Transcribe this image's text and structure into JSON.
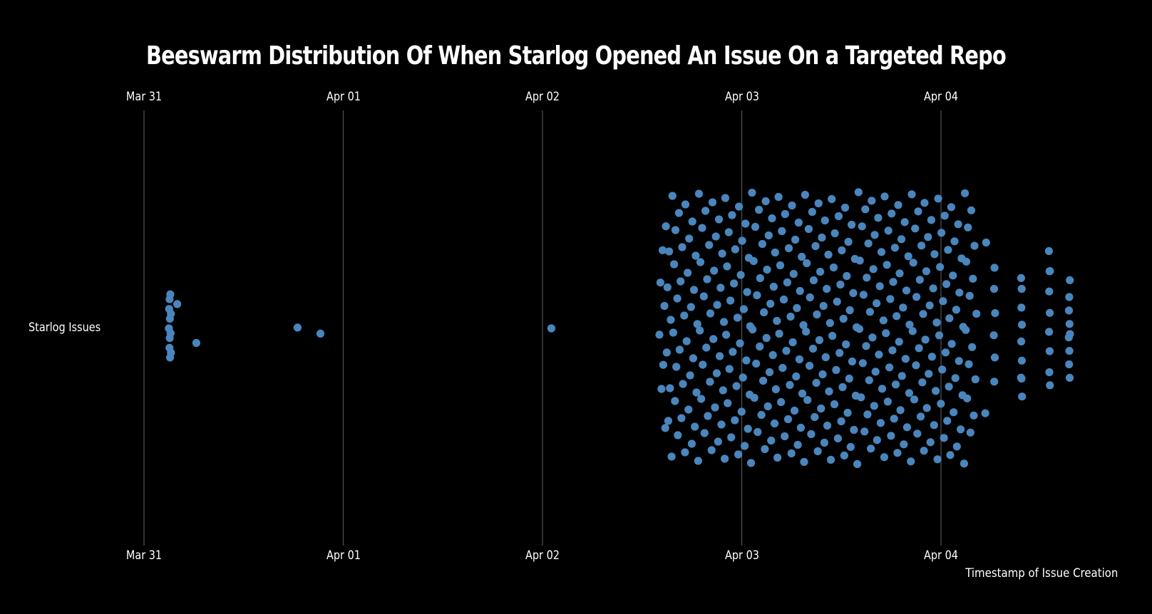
{
  "chart_data": {
    "type": "scatter",
    "subtype": "beeswarm",
    "title": "Beeswarm Distribution Of When Starlog Opened An Issue On a Targeted Repo",
    "xlabel": "Timestamp of Issue Creation",
    "ylabel": "",
    "category": "Starlog Issues",
    "x_ticks": [
      "Mar 31",
      "Apr 01",
      "Apr 02",
      "Apr 03",
      "Apr 04"
    ],
    "xlim": [
      "Mar 31 00:00",
      "Apr 04 17:00"
    ],
    "grid": "vertical major gridlines",
    "axis_labels_position": "top and bottom",
    "colors": {
      "background": "#000000",
      "point": "#4a86bd",
      "grid": "#4d4d4d",
      "text": "#ffffff"
    },
    "points": [
      "Mar 31 03:00",
      "Mar 31 03:02",
      "Mar 31 03:04",
      "Mar 31 03:05",
      "Mar 31 03:06",
      "Mar 31 03:07",
      "Mar 31 03:08",
      "Mar 31 03:10",
      "Mar 31 03:12",
      "Mar 31 03:14",
      "Mar 31 03:15",
      "Mar 31 04:00",
      "Mar 31 06:18",
      "Mar 31 18:30",
      "Mar 31 21:15",
      "Apr 02 01:04",
      "Apr 02 14:05",
      "Apr 02 14:12",
      "Apr 02 14:20",
      "Apr 02 14:28",
      "Apr 02 14:33",
      "Apr 02 14:41",
      "Apr 02 14:47",
      "Apr 02 14:52",
      "Apr 02 14:58",
      "Apr 02 15:03",
      "Apr 02 15:09",
      "Apr 02 15:15",
      "Apr 02 15:21",
      "Apr 02 15:27",
      "Apr 02 15:33",
      "Apr 02 15:39",
      "Apr 02 15:45",
      "Apr 02 15:51",
      "Apr 02 15:57",
      "Apr 02 16:01",
      "Apr 02 16:07",
      "Apr 02 16:14",
      "Apr 02 16:18",
      "Apr 02 16:26",
      "Apr 02 16:31",
      "Apr 02 16:38",
      "Apr 02 16:44",
      "Apr 02 16:50",
      "Apr 02 16:55",
      "Apr 02 17:04",
      "Apr 02 17:10",
      "Apr 02 17:13",
      "Apr 02 17:22",
      "Apr 02 17:29",
      "Apr 02 17:35",
      "Apr 02 17:40",
      "Apr 02 17:47",
      "Apr 02 17:53",
      "Apr 02 17:59",
      "Apr 02 18:03",
      "Apr 02 18:09",
      "Apr 02 18:15",
      "Apr 02 18:21",
      "Apr 02 18:27",
      "Apr 02 18:33",
      "Apr 02 18:39",
      "Apr 02 18:45",
      "Apr 02 18:51",
      "Apr 02 18:57",
      "Apr 02 19:01",
      "Apr 02 19:07",
      "Apr 02 19:14",
      "Apr 02 19:18",
      "Apr 02 19:26",
      "Apr 02 19:31",
      "Apr 02 19:38",
      "Apr 02 19:44",
      "Apr 02 19:50",
      "Apr 02 19:55",
      "Apr 02 20:04",
      "Apr 02 20:10",
      "Apr 02 20:13",
      "Apr 02 20:22",
      "Apr 02 20:29",
      "Apr 02 20:35",
      "Apr 02 20:40",
      "Apr 02 20:47",
      "Apr 02 20:53",
      "Apr 02 20:59",
      "Apr 02 21:03",
      "Apr 02 21:09",
      "Apr 02 21:15",
      "Apr 02 21:21",
      "Apr 02 21:27",
      "Apr 02 21:33",
      "Apr 02 21:39",
      "Apr 02 21:45",
      "Apr 02 21:51",
      "Apr 02 21:57",
      "Apr 02 22:01",
      "Apr 02 22:07",
      "Apr 02 22:14",
      "Apr 02 22:18",
      "Apr 02 22:26",
      "Apr 02 22:31",
      "Apr 02 22:38",
      "Apr 02 22:44",
      "Apr 02 22:50",
      "Apr 02 22:55",
      "Apr 02 23:04",
      "Apr 02 23:10",
      "Apr 02 23:13",
      "Apr 02 23:22",
      "Apr 02 23:29",
      "Apr 02 23:35",
      "Apr 02 23:40",
      "Apr 02 23:47",
      "Apr 02 23:53",
      "Apr 02 23:59",
      "Apr 03 00:03",
      "Apr 03 00:09",
      "Apr 03 00:15",
      "Apr 03 00:21",
      "Apr 03 00:27",
      "Apr 03 00:33",
      "Apr 03 00:39",
      "Apr 03 00:45",
      "Apr 03 00:51",
      "Apr 03 00:57",
      "Apr 03 01:01",
      "Apr 03 01:07",
      "Apr 03 01:14",
      "Apr 03 01:18",
      "Apr 03 01:26",
      "Apr 03 01:31",
      "Apr 03 01:38",
      "Apr 03 01:44",
      "Apr 03 01:50",
      "Apr 03 01:55",
      "Apr 03 02:04",
      "Apr 03 02:10",
      "Apr 03 02:13",
      "Apr 03 02:22",
      "Apr 03 02:29",
      "Apr 03 02:35",
      "Apr 03 02:40",
      "Apr 03 02:47",
      "Apr 03 02:53",
      "Apr 03 02:59",
      "Apr 03 03:03",
      "Apr 03 03:09",
      "Apr 03 03:15",
      "Apr 03 03:21",
      "Apr 03 03:27",
      "Apr 03 03:33",
      "Apr 03 03:39",
      "Apr 03 03:45",
      "Apr 03 03:51",
      "Apr 03 03:57",
      "Apr 03 04:01",
      "Apr 03 04:07",
      "Apr 03 04:14",
      "Apr 03 04:18",
      "Apr 03 04:26",
      "Apr 03 04:31",
      "Apr 03 04:38",
      "Apr 03 04:44",
      "Apr 03 04:50",
      "Apr 03 04:55",
      "Apr 03 05:04",
      "Apr 03 05:10",
      "Apr 03 05:13",
      "Apr 03 05:22",
      "Apr 03 05:29",
      "Apr 03 05:35",
      "Apr 03 05:40",
      "Apr 03 05:47",
      "Apr 03 05:53",
      "Apr 03 05:59",
      "Apr 03 06:03",
      "Apr 03 06:09",
      "Apr 03 06:15",
      "Apr 03 06:21",
      "Apr 03 06:27",
      "Apr 03 06:33",
      "Apr 03 06:39",
      "Apr 03 06:45",
      "Apr 03 06:51",
      "Apr 03 06:57",
      "Apr 03 07:01",
      "Apr 03 07:07",
      "Apr 03 07:14",
      "Apr 03 07:18",
      "Apr 03 07:26",
      "Apr 03 07:31",
      "Apr 03 07:38",
      "Apr 03 07:44",
      "Apr 03 07:50",
      "Apr 03 07:55",
      "Apr 03 08:04",
      "Apr 03 08:10",
      "Apr 03 08:13",
      "Apr 03 08:22",
      "Apr 03 08:29",
      "Apr 03 08:35",
      "Apr 03 08:40",
      "Apr 03 08:47",
      "Apr 03 08:53",
      "Apr 03 08:59",
      "Apr 03 09:03",
      "Apr 03 09:09",
      "Apr 03 09:15",
      "Apr 03 09:21",
      "Apr 03 09:27",
      "Apr 03 09:33",
      "Apr 03 09:39",
      "Apr 03 09:45",
      "Apr 03 09:51",
      "Apr 03 09:57",
      "Apr 03 10:01",
      "Apr 03 10:07",
      "Apr 03 10:14",
      "Apr 03 10:18",
      "Apr 03 10:26",
      "Apr 03 10:31",
      "Apr 03 10:38",
      "Apr 03 10:44",
      "Apr 03 10:50",
      "Apr 03 10:55",
      "Apr 03 11:04",
      "Apr 03 11:10",
      "Apr 03 11:13",
      "Apr 03 11:22",
      "Apr 03 11:29",
      "Apr 03 11:35",
      "Apr 03 11:40",
      "Apr 03 11:47",
      "Apr 03 11:53",
      "Apr 03 11:59",
      "Apr 03 12:03",
      "Apr 03 12:09",
      "Apr 03 12:15",
      "Apr 03 12:21",
      "Apr 03 12:27",
      "Apr 03 12:33",
      "Apr 03 12:39",
      "Apr 03 12:45",
      "Apr 03 12:51",
      "Apr 03 12:57",
      "Apr 03 13:01",
      "Apr 03 13:07",
      "Apr 03 13:14",
      "Apr 03 13:18",
      "Apr 03 13:26",
      "Apr 03 13:31",
      "Apr 03 13:38",
      "Apr 03 13:44",
      "Apr 03 13:50",
      "Apr 03 13:55",
      "Apr 03 14:04",
      "Apr 03 14:10",
      "Apr 03 14:13",
      "Apr 03 14:22",
      "Apr 03 14:29",
      "Apr 03 14:35",
      "Apr 03 14:40",
      "Apr 03 14:47",
      "Apr 03 14:53",
      "Apr 03 14:59",
      "Apr 03 15:03",
      "Apr 03 15:09",
      "Apr 03 15:15",
      "Apr 03 15:21",
      "Apr 03 15:27",
      "Apr 03 15:33",
      "Apr 03 15:39",
      "Apr 03 15:45",
      "Apr 03 15:51",
      "Apr 03 15:57",
      "Apr 03 16:01",
      "Apr 03 16:07",
      "Apr 03 16:14",
      "Apr 03 16:18",
      "Apr 03 16:26",
      "Apr 03 16:31",
      "Apr 03 16:38",
      "Apr 03 16:44",
      "Apr 03 16:50",
      "Apr 03 16:55",
      "Apr 03 17:04",
      "Apr 03 17:10",
      "Apr 03 17:13",
      "Apr 03 17:22",
      "Apr 03 17:29",
      "Apr 03 17:35",
      "Apr 03 17:40",
      "Apr 03 17:47",
      "Apr 03 17:53",
      "Apr 03 17:59",
      "Apr 03 18:03",
      "Apr 03 18:09",
      "Apr 03 18:15",
      "Apr 03 18:21",
      "Apr 03 18:27",
      "Apr 03 18:33",
      "Apr 03 18:39",
      "Apr 03 18:45",
      "Apr 03 18:51",
      "Apr 03 18:57",
      "Apr 03 19:01",
      "Apr 03 19:07",
      "Apr 03 19:14",
      "Apr 03 19:18",
      "Apr 03 19:26",
      "Apr 03 19:31",
      "Apr 03 19:38",
      "Apr 03 19:44",
      "Apr 03 19:50",
      "Apr 03 19:55",
      "Apr 03 20:04",
      "Apr 03 20:10",
      "Apr 03 20:13",
      "Apr 03 20:22",
      "Apr 03 20:29",
      "Apr 03 20:35",
      "Apr 03 20:40",
      "Apr 03 20:47",
      "Apr 03 20:53",
      "Apr 03 20:59",
      "Apr 03 21:03",
      "Apr 03 21:09",
      "Apr 03 21:15",
      "Apr 03 21:21",
      "Apr 03 21:27",
      "Apr 03 21:33",
      "Apr 03 21:39",
      "Apr 03 21:45",
      "Apr 03 21:51",
      "Apr 03 21:57",
      "Apr 03 22:01",
      "Apr 03 22:07",
      "Apr 03 22:14",
      "Apr 03 22:18",
      "Apr 03 22:26",
      "Apr 03 22:31",
      "Apr 03 22:38",
      "Apr 03 22:44",
      "Apr 03 22:50",
      "Apr 03 22:55",
      "Apr 03 23:04",
      "Apr 03 23:10",
      "Apr 03 23:13",
      "Apr 03 23:22",
      "Apr 03 23:29",
      "Apr 03 23:35",
      "Apr 03 23:40",
      "Apr 03 23:47",
      "Apr 03 23:53",
      "Apr 03 23:59",
      "Apr 04 00:03",
      "Apr 04 00:09",
      "Apr 04 00:15",
      "Apr 04 00:21",
      "Apr 04 00:27",
      "Apr 04 00:33",
      "Apr 04 00:39",
      "Apr 04 00:45",
      "Apr 04 00:51",
      "Apr 04 00:57",
      "Apr 04 01:01",
      "Apr 04 01:07",
      "Apr 04 01:14",
      "Apr 04 01:18",
      "Apr 04 01:26",
      "Apr 04 01:31",
      "Apr 04 01:38",
      "Apr 04 01:44",
      "Apr 04 01:50",
      "Apr 04 01:55",
      "Apr 04 02:04",
      "Apr 04 02:10",
      "Apr 04 02:13",
      "Apr 04 02:22",
      "Apr 04 02:29",
      "Apr 04 02:35",
      "Apr 04 02:40",
      "Apr 04 02:47",
      "Apr 04 02:53",
      "Apr 04 02:59",
      "Apr 04 03:03",
      "Apr 04 03:09",
      "Apr 04 03:15",
      "Apr 04 03:21",
      "Apr 04 03:27",
      "Apr 04 03:33",
      "Apr 04 03:39",
      "Apr 04 03:45",
      "Apr 04 03:51",
      "Apr 04 03:57",
      "Apr 04 04:02",
      "Apr 04 04:09",
      "Apr 04 04:16",
      "Apr 04 05:20",
      "Apr 04 05:26",
      "Apr 04 06:22",
      "Apr 04 06:24",
      "Apr 04 06:25",
      "Apr 04 06:27",
      "Apr 04 06:29",
      "Apr 04 06:31",
      "Apr 04 09:38",
      "Apr 04 09:39",
      "Apr 04 09:40",
      "Apr 04 09:41",
      "Apr 04 09:42",
      "Apr 04 09:43",
      "Apr 04 09:44",
      "Apr 04 09:45",
      "Apr 04 09:46",
      "Apr 04 13:00",
      "Apr 04 13:01",
      "Apr 04 13:02",
      "Apr 04 13:03",
      "Apr 04 13:04",
      "Apr 04 13:05",
      "Apr 04 13:06",
      "Apr 04 13:07",
      "Apr 04 13:08",
      "Apr 04 15:24",
      "Apr 04 15:25",
      "Apr 04 15:26",
      "Apr 04 15:27",
      "Apr 04 15:28",
      "Apr 04 15:29",
      "Apr 04 15:30",
      "Apr 04 15:31",
      "Apr 04 15:32"
    ]
  }
}
